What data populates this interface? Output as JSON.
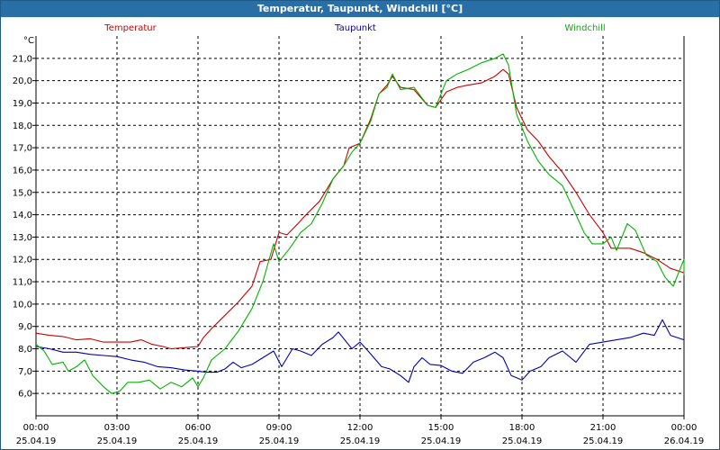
{
  "window": {
    "title": "Temperatur, Taupunkt, Windchill [°C]"
  },
  "chart_data": {
    "type": "line",
    "title": "Temperatur, Taupunkt, Windchill [°C]",
    "ylabel": "°C",
    "ylim": [
      5.0,
      22.0
    ],
    "yticks": [
      "6,0",
      "7,0",
      "8,0",
      "9,0",
      "10,0",
      "11,0",
      "12,0",
      "13,0",
      "14,0",
      "15,0",
      "16,0",
      "17,0",
      "18,0",
      "19,0",
      "20,0",
      "21,0"
    ],
    "xlim": [
      0,
      24
    ],
    "xticks": [
      {
        "x": 0,
        "time": "00:00",
        "date": "25.04.19"
      },
      {
        "x": 3,
        "time": "03:00",
        "date": "25.04.19"
      },
      {
        "x": 6,
        "time": "06:00",
        "date": "25.04.19"
      },
      {
        "x": 9,
        "time": "09:00",
        "date": "25.04.19"
      },
      {
        "x": 12,
        "time": "12:00",
        "date": "25.04.19"
      },
      {
        "x": 15,
        "time": "15:00",
        "date": "25.04.19"
      },
      {
        "x": 18,
        "time": "18:00",
        "date": "25.04.19"
      },
      {
        "x": 21,
        "time": "21:00",
        "date": "25.04.19"
      },
      {
        "x": 24,
        "time": "00:00",
        "date": "26.04.19"
      }
    ],
    "grid": true,
    "legend_placement": "top",
    "series": [
      {
        "name": "Temperatur",
        "color": "#cc0000",
        "points": [
          [
            0,
            8.7
          ],
          [
            0.5,
            8.6
          ],
          [
            1,
            8.55
          ],
          [
            1.5,
            8.4
          ],
          [
            2,
            8.45
          ],
          [
            2.5,
            8.3
          ],
          [
            3,
            8.3
          ],
          [
            3.5,
            8.3
          ],
          [
            3.9,
            8.4
          ],
          [
            4.3,
            8.2
          ],
          [
            4.7,
            8.1
          ],
          [
            5,
            8.0
          ],
          [
            5.5,
            8.05
          ],
          [
            6,
            8.1
          ],
          [
            6.2,
            8.5
          ],
          [
            6.5,
            8.9
          ],
          [
            7,
            9.5
          ],
          [
            7.5,
            10.1
          ],
          [
            8,
            10.8
          ],
          [
            8.3,
            11.9
          ],
          [
            8.7,
            12.0
          ],
          [
            9,
            13.2
          ],
          [
            9.3,
            13.1
          ],
          [
            9.7,
            13.6
          ],
          [
            10,
            14.0
          ],
          [
            10.5,
            14.6
          ],
          [
            11,
            15.6
          ],
          [
            11.4,
            16.2
          ],
          [
            11.6,
            17.0
          ],
          [
            12,
            17.2
          ],
          [
            12.4,
            18.3
          ],
          [
            12.7,
            19.4
          ],
          [
            13,
            19.8
          ],
          [
            13.2,
            20.2
          ],
          [
            13.5,
            19.7
          ],
          [
            14,
            19.6
          ],
          [
            14.5,
            18.9
          ],
          [
            14.8,
            18.8
          ],
          [
            15.2,
            19.5
          ],
          [
            15.6,
            19.7
          ],
          [
            16,
            19.8
          ],
          [
            16.5,
            19.9
          ],
          [
            17,
            20.2
          ],
          [
            17.3,
            20.5
          ],
          [
            17.5,
            20.3
          ],
          [
            17.8,
            18.8
          ],
          [
            18.2,
            17.8
          ],
          [
            18.6,
            17.3
          ],
          [
            19,
            16.6
          ],
          [
            19.5,
            15.9
          ],
          [
            20,
            15.0
          ],
          [
            20.5,
            14.0
          ],
          [
            21,
            13.2
          ],
          [
            21.3,
            12.5
          ],
          [
            21.6,
            12.5
          ],
          [
            22,
            12.5
          ],
          [
            22.5,
            12.3
          ],
          [
            23,
            12.0
          ],
          [
            23.5,
            11.6
          ],
          [
            24,
            11.4
          ]
        ]
      },
      {
        "name": "Taupunkt",
        "color": "#0000b4",
        "points": [
          [
            0,
            8.1
          ],
          [
            0.5,
            8.0
          ],
          [
            1,
            7.85
          ],
          [
            1.5,
            7.85
          ],
          [
            2,
            7.75
          ],
          [
            2.5,
            7.7
          ],
          [
            3,
            7.65
          ],
          [
            3.5,
            7.5
          ],
          [
            4,
            7.4
          ],
          [
            4.5,
            7.2
          ],
          [
            5,
            7.15
          ],
          [
            5.5,
            7.05
          ],
          [
            6,
            7.0
          ],
          [
            6.3,
            6.95
          ],
          [
            6.7,
            6.95
          ],
          [
            7,
            7.1
          ],
          [
            7.3,
            7.4
          ],
          [
            7.6,
            7.15
          ],
          [
            8,
            7.3
          ],
          [
            8.4,
            7.6
          ],
          [
            8.8,
            7.9
          ],
          [
            9.1,
            7.2
          ],
          [
            9.5,
            8.0
          ],
          [
            9.8,
            7.9
          ],
          [
            10.2,
            7.7
          ],
          [
            10.6,
            8.2
          ],
          [
            11,
            8.5
          ],
          [
            11.2,
            8.75
          ],
          [
            11.5,
            8.3
          ],
          [
            11.7,
            8.0
          ],
          [
            12,
            8.3
          ],
          [
            12.3,
            7.9
          ],
          [
            12.8,
            7.2
          ],
          [
            13.1,
            7.1
          ],
          [
            13.5,
            6.8
          ],
          [
            13.8,
            6.5
          ],
          [
            14,
            7.2
          ],
          [
            14.3,
            7.6
          ],
          [
            14.6,
            7.3
          ],
          [
            15,
            7.25
          ],
          [
            15.4,
            7.0
          ],
          [
            15.8,
            6.9
          ],
          [
            16.2,
            7.4
          ],
          [
            16.6,
            7.6
          ],
          [
            17,
            7.85
          ],
          [
            17.3,
            7.6
          ],
          [
            17.6,
            6.8
          ],
          [
            18,
            6.6
          ],
          [
            18.3,
            7.0
          ],
          [
            18.7,
            7.2
          ],
          [
            19,
            7.6
          ],
          [
            19.5,
            7.9
          ],
          [
            20,
            7.4
          ],
          [
            20.5,
            8.2
          ],
          [
            21,
            8.3
          ],
          [
            21.5,
            8.4
          ],
          [
            22,
            8.5
          ],
          [
            22.5,
            8.7
          ],
          [
            22.9,
            8.6
          ],
          [
            23.2,
            9.3
          ],
          [
            23.5,
            8.6
          ],
          [
            24,
            8.4
          ]
        ]
      },
      {
        "name": "Windchill",
        "color": "#00b400",
        "points": [
          [
            0,
            8.2
          ],
          [
            0.3,
            7.9
          ],
          [
            0.6,
            7.3
          ],
          [
            1,
            7.4
          ],
          [
            1.2,
            7.0
          ],
          [
            1.5,
            7.2
          ],
          [
            1.8,
            7.5
          ],
          [
            2.1,
            6.8
          ],
          [
            2.5,
            6.3
          ],
          [
            2.8,
            6.0
          ],
          [
            3.1,
            6.1
          ],
          [
            3.4,
            6.5
          ],
          [
            3.8,
            6.5
          ],
          [
            4.2,
            6.6
          ],
          [
            4.6,
            6.2
          ],
          [
            5,
            6.5
          ],
          [
            5.4,
            6.3
          ],
          [
            5.8,
            6.7
          ],
          [
            6,
            6.3
          ],
          [
            6.2,
            6.7
          ],
          [
            6.5,
            7.5
          ],
          [
            7,
            8.0
          ],
          [
            7.5,
            8.8
          ],
          [
            8,
            9.8
          ],
          [
            8.4,
            11.0
          ],
          [
            8.8,
            12.7
          ],
          [
            9,
            11.9
          ],
          [
            9.4,
            12.5
          ],
          [
            9.8,
            13.2
          ],
          [
            10.2,
            13.6
          ],
          [
            10.6,
            14.5
          ],
          [
            11,
            15.6
          ],
          [
            11.4,
            16.2
          ],
          [
            11.7,
            16.8
          ],
          [
            12,
            17.2
          ],
          [
            12.4,
            18.2
          ],
          [
            12.7,
            19.4
          ],
          [
            13,
            19.7
          ],
          [
            13.2,
            20.3
          ],
          [
            13.5,
            19.6
          ],
          [
            14,
            19.7
          ],
          [
            14.5,
            18.9
          ],
          [
            14.8,
            18.8
          ],
          [
            15.2,
            20.0
          ],
          [
            15.6,
            20.3
          ],
          [
            16,
            20.5
          ],
          [
            16.5,
            20.8
          ],
          [
            17,
            21.0
          ],
          [
            17.3,
            21.2
          ],
          [
            17.5,
            20.7
          ],
          [
            17.8,
            18.5
          ],
          [
            18.2,
            17.3
          ],
          [
            18.6,
            16.4
          ],
          [
            19,
            15.8
          ],
          [
            19.5,
            15.3
          ],
          [
            20,
            14.0
          ],
          [
            20.3,
            13.2
          ],
          [
            20.6,
            12.7
          ],
          [
            21,
            12.7
          ],
          [
            21.3,
            13.0
          ],
          [
            21.5,
            12.4
          ],
          [
            21.9,
            13.6
          ],
          [
            22.2,
            13.3
          ],
          [
            22.6,
            12.2
          ],
          [
            23,
            11.9
          ],
          [
            23.3,
            11.2
          ],
          [
            23.6,
            10.8
          ],
          [
            24,
            12.0
          ],
          [
            24,
            11.3
          ]
        ]
      }
    ]
  }
}
